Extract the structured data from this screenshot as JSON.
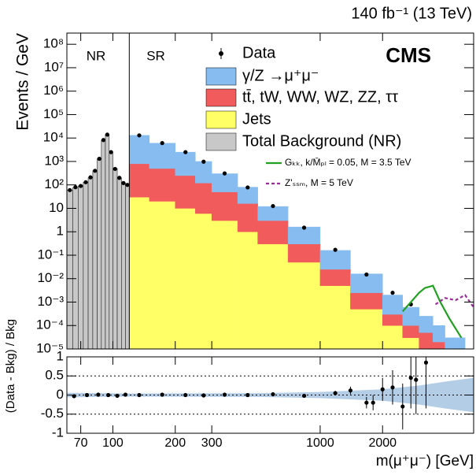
{
  "chart_data": [
    {
      "type": "histogram",
      "title": "140 fb⁻¹ (13 TeV)",
      "experiment": "CMS",
      "y_label": "Events / GeV",
      "region_labels": [
        "NR",
        "SR"
      ],
      "region_boundary": 120,
      "xscale": "log",
      "yscale": "log",
      "xlim": [
        60,
        5500
      ],
      "ylim": [
        1e-05,
        300000000
      ],
      "xticks": [
        70,
        100,
        200,
        300,
        1000,
        2000
      ],
      "yticks": [
        {
          "value": 100000000,
          "label": "10⁸"
        },
        {
          "value": 10000000,
          "label": "10⁷"
        },
        {
          "value": 1000000,
          "label": "10⁶"
        },
        {
          "value": 100000,
          "label": "10⁵"
        },
        {
          "value": 10000,
          "label": "10⁴"
        },
        {
          "value": 1000,
          "label": "10³"
        },
        {
          "value": 100,
          "label": "10²"
        },
        10,
        1,
        {
          "value": 0.1,
          "label": "10⁻¹"
        },
        {
          "value": 0.01,
          "label": "10⁻²"
        },
        {
          "value": 0.001,
          "label": "10⁻³"
        },
        {
          "value": 0.0001,
          "label": "10⁻⁴"
        },
        {
          "value": 1e-05,
          "label": "10⁻⁵"
        }
      ],
      "series": [
        {
          "name": "Data",
          "color": "#000000",
          "marker": "circle",
          "x": [
            62,
            66,
            70,
            74,
            78,
            82,
            86,
            90,
            94,
            98,
            102.5,
            107.5,
            112.5,
            117.5,
            134,
            173,
            224,
            274,
            346,
            447,
            592,
            837,
            1183,
            1673,
            2236,
            2739
          ],
          "values": [
            60,
            80,
            90,
            130,
            210,
            400,
            1300,
            8200,
            14000,
            2500,
            480,
            200,
            120,
            100,
            13000,
            6100,
            2500,
            980,
            310,
            78,
            12.5,
            1.5,
            0.17,
            0.015,
            0.0025,
            0.0008
          ]
        },
        {
          "name": "γ/Z →μ⁺μ⁻",
          "color": "#86bcef",
          "stacked": true,
          "bins": [
            120,
            150,
            200,
            250,
            300,
            400,
            500,
            700,
            1000,
            1400,
            2000,
            2500,
            3000,
            3500,
            4000,
            5000
          ],
          "values": [
            12200,
            5500,
            2250,
            880,
            250,
            64,
            9,
            1.3,
            0.135,
            0.0135,
            0.0017,
            0.0005,
            0.0002,
            8e-05,
            2e-05
          ]
        },
        {
          "name": "tt̄, tW, WW, WZ, ZZ, ττ",
          "color": "#f15b5b",
          "stacked": true,
          "bins": [
            120,
            150,
            200,
            250,
            300,
            400,
            500,
            700,
            1000,
            1400,
            2000,
            2500,
            3000,
            3500,
            4000,
            5000
          ],
          "values": [
            770,
            480,
            240,
            114,
            47,
            15,
            2.7,
            0.25,
            0.02,
            0.002,
            0.0002,
            7e-05,
            4e-05,
            1e-05,
            5e-06
          ]
        },
        {
          "name": "Jets",
          "color": "#ffff66",
          "stacked": true,
          "bins": [
            120,
            150,
            200,
            250,
            300,
            400,
            500,
            700,
            1000,
            1400,
            2000,
            2500,
            3000,
            3500,
            4000,
            5000
          ],
          "values": [
            30,
            20,
            10,
            6,
            3,
            1,
            0.3,
            0.05,
            0.005,
            0.0005,
            0.0001,
            3e-05,
            1e-05,
            1e-05,
            5e-06
          ]
        },
        {
          "name": "Total Background (NR)",
          "color": "#c8c8c8",
          "bins": [
            60,
            64,
            68,
            72,
            76,
            80,
            84,
            88,
            92,
            96,
            100,
            105,
            110,
            115,
            120
          ],
          "values": [
            60,
            75,
            90,
            130,
            200,
            400,
            1300,
            8000,
            14000,
            2500,
            500,
            200,
            120,
            100
          ]
        },
        {
          "name": "Gₖₖ, k/M̄ₚₗ = 0.05, M = 3.5 TeV",
          "color": "#22a022",
          "x": [
            2500,
            3000,
            3200,
            3500,
            3800,
            4200,
            4800
          ],
          "values": [
            0.0004,
            0.0025,
            0.004,
            0.005,
            0.001,
            0.0002,
            3e-05
          ]
        },
        {
          "name": "Z'ₛₛₘ, M = 5 TeV",
          "color": "#9b2c9b",
          "dash": true,
          "x": [
            3600,
            4000,
            4500,
            5000,
            5500
          ],
          "values": [
            0.0008,
            0.0015,
            0.0012,
            0.002,
            0.0006
          ]
        }
      ]
    },
    {
      "type": "scatter",
      "x_label": "m(μ⁺μ⁻) [GeV]",
      "y_label": "(Data - Bkg) / Bkg",
      "xscale": "log",
      "xlim": [
        60,
        5500
      ],
      "ylim": [
        -1,
        1
      ],
      "xticks": [
        70,
        100,
        200,
        300,
        1000,
        2000
      ],
      "yticks": [
        -1,
        -0.5,
        0,
        0.5,
        1
      ],
      "grid": true,
      "band": {
        "color": "#b4cde6",
        "x": [
          60,
          120,
          500,
          1000,
          2000,
          3000,
          4000,
          5500
        ],
        "upper": [
          0.06,
          0.04,
          0.05,
          0.08,
          0.15,
          0.25,
          0.35,
          0.45
        ],
        "lower": [
          -0.06,
          -0.04,
          -0.05,
          -0.08,
          -0.15,
          -0.25,
          -0.35,
          -0.45
        ]
      },
      "series": [
        {
          "name": "Data",
          "color": "#000000",
          "x": [
            65,
            75,
            85,
            95,
            105,
            115,
            134,
            173,
            224,
            274,
            346,
            447,
            592,
            837,
            1183,
            1400,
            1673,
            1800,
            2000,
            2236,
            2500,
            2739,
            2900,
            3240
          ],
          "values": [
            -0.03,
            0,
            0.01,
            0,
            -0.02,
            0.01,
            0,
            0.01,
            0,
            -0.01,
            0.01,
            0,
            0.02,
            -0.02,
            0.05,
            0.12,
            -0.2,
            -0.2,
            0.15,
            0.2,
            -0.3,
            0.45,
            0.4,
            0.85
          ],
          "errors": [
            0.02,
            0.01,
            0.01,
            0.01,
            0.01,
            0.02,
            0.01,
            0.01,
            0.01,
            0.01,
            0.02,
            0.02,
            0.03,
            0.04,
            0.06,
            0.1,
            0.15,
            0.2,
            0.3,
            0.45,
            0.6,
            0.8,
            0.9,
            1.2
          ]
        }
      ]
    }
  ]
}
